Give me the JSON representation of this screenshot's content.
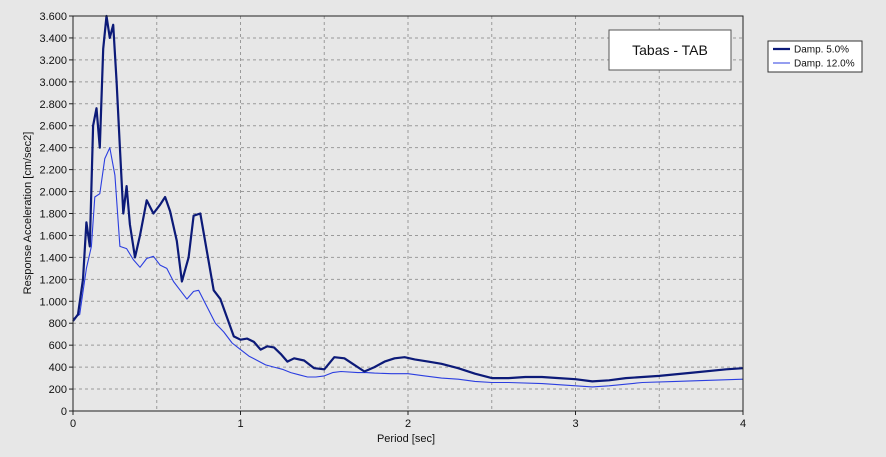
{
  "chart_data": {
    "type": "line",
    "title": "Tabas - TAB",
    "xlabel": "Period [sec]",
    "ylabel": "Response Acceleration [cm/sec2]",
    "xlim": [
      0,
      4
    ],
    "ylim": [
      0,
      3600
    ],
    "x_ticks": [
      0,
      1,
      2,
      3,
      4
    ],
    "x_tick_labels": [
      "0",
      "1",
      "2",
      "3",
      "4"
    ],
    "y_ticks": [
      0,
      200,
      400,
      600,
      800,
      1000,
      1200,
      1400,
      1600,
      1800,
      2000,
      2200,
      2400,
      2600,
      2800,
      3000,
      3200,
      3400,
      3600
    ],
    "y_tick_labels": [
      "0",
      "200",
      "400",
      "600",
      "800",
      "1.000",
      "1.200",
      "1.400",
      "1.600",
      "1.800",
      "2.000",
      "2.200",
      "2.400",
      "2.600",
      "2.800",
      "3.000",
      "3.200",
      "3.400",
      "3.600"
    ],
    "grid": true,
    "legend_position": "top-right, outside plot",
    "colors": {
      "plot_bg": "#e7e7e7",
      "grid": "#9a9a9a",
      "title_box": "#ffffff"
    },
    "series": [
      {
        "name": "Damp. 5.0%",
        "color": "#0c1a78",
        "width": 2.2,
        "points": [
          [
            0,
            820
          ],
          [
            0.03,
            880
          ],
          [
            0.06,
            1200
          ],
          [
            0.08,
            1720
          ],
          [
            0.1,
            1500
          ],
          [
            0.12,
            2600
          ],
          [
            0.14,
            2760
          ],
          [
            0.16,
            2400
          ],
          [
            0.18,
            3300
          ],
          [
            0.2,
            3650
          ],
          [
            0.22,
            3400
          ],
          [
            0.24,
            3520
          ],
          [
            0.26,
            3000
          ],
          [
            0.28,
            2400
          ],
          [
            0.3,
            1800
          ],
          [
            0.32,
            2050
          ],
          [
            0.34,
            1700
          ],
          [
            0.37,
            1400
          ],
          [
            0.4,
            1600
          ],
          [
            0.44,
            1920
          ],
          [
            0.48,
            1800
          ],
          [
            0.52,
            1880
          ],
          [
            0.55,
            1950
          ],
          [
            0.58,
            1820
          ],
          [
            0.62,
            1550
          ],
          [
            0.65,
            1180
          ],
          [
            0.69,
            1400
          ],
          [
            0.72,
            1780
          ],
          [
            0.76,
            1800
          ],
          [
            0.8,
            1450
          ],
          [
            0.84,
            1100
          ],
          [
            0.88,
            1020
          ],
          [
            0.92,
            850
          ],
          [
            0.96,
            680
          ],
          [
            1.0,
            650
          ],
          [
            1.04,
            660
          ],
          [
            1.08,
            630
          ],
          [
            1.12,
            560
          ],
          [
            1.16,
            590
          ],
          [
            1.2,
            580
          ],
          [
            1.24,
            520
          ],
          [
            1.28,
            450
          ],
          [
            1.32,
            480
          ],
          [
            1.38,
            460
          ],
          [
            1.44,
            390
          ],
          [
            1.5,
            380
          ],
          [
            1.56,
            490
          ],
          [
            1.62,
            480
          ],
          [
            1.68,
            420
          ],
          [
            1.74,
            360
          ],
          [
            1.8,
            400
          ],
          [
            1.86,
            450
          ],
          [
            1.92,
            480
          ],
          [
            1.98,
            490
          ],
          [
            2.04,
            470
          ],
          [
            2.12,
            450
          ],
          [
            2.2,
            430
          ],
          [
            2.3,
            390
          ],
          [
            2.4,
            340
          ],
          [
            2.5,
            300
          ],
          [
            2.6,
            300
          ],
          [
            2.7,
            310
          ],
          [
            2.8,
            310
          ],
          [
            2.9,
            300
          ],
          [
            3.0,
            290
          ],
          [
            3.1,
            270
          ],
          [
            3.2,
            280
          ],
          [
            3.3,
            300
          ],
          [
            3.5,
            320
          ],
          [
            3.7,
            350
          ],
          [
            3.9,
            380
          ],
          [
            4.0,
            390
          ]
        ]
      },
      {
        "name": "Damp. 12.0%",
        "color": "#2b3ee0",
        "width": 1.1,
        "points": [
          [
            0,
            840
          ],
          [
            0.04,
            880
          ],
          [
            0.08,
            1300
          ],
          [
            0.11,
            1500
          ],
          [
            0.13,
            1950
          ],
          [
            0.16,
            1980
          ],
          [
            0.19,
            2300
          ],
          [
            0.22,
            2400
          ],
          [
            0.25,
            2150
          ],
          [
            0.28,
            1500
          ],
          [
            0.32,
            1480
          ],
          [
            0.36,
            1380
          ],
          [
            0.4,
            1310
          ],
          [
            0.44,
            1390
          ],
          [
            0.48,
            1410
          ],
          [
            0.52,
            1330
          ],
          [
            0.56,
            1300
          ],
          [
            0.6,
            1180
          ],
          [
            0.64,
            1100
          ],
          [
            0.68,
            1020
          ],
          [
            0.72,
            1090
          ],
          [
            0.75,
            1100
          ],
          [
            0.8,
            950
          ],
          [
            0.85,
            800
          ],
          [
            0.9,
            720
          ],
          [
            0.95,
            620
          ],
          [
            1.0,
            560
          ],
          [
            1.05,
            500
          ],
          [
            1.1,
            460
          ],
          [
            1.15,
            420
          ],
          [
            1.2,
            400
          ],
          [
            1.25,
            380
          ],
          [
            1.3,
            350
          ],
          [
            1.35,
            330
          ],
          [
            1.4,
            310
          ],
          [
            1.45,
            310
          ],
          [
            1.5,
            320
          ],
          [
            1.55,
            350
          ],
          [
            1.6,
            360
          ],
          [
            1.7,
            350
          ],
          [
            1.75,
            350
          ],
          [
            1.8,
            345
          ],
          [
            1.9,
            340
          ],
          [
            2.0,
            340
          ],
          [
            2.1,
            320
          ],
          [
            2.2,
            300
          ],
          [
            2.3,
            290
          ],
          [
            2.4,
            270
          ],
          [
            2.5,
            260
          ],
          [
            2.6,
            260
          ],
          [
            2.8,
            250
          ],
          [
            3.0,
            230
          ],
          [
            3.1,
            220
          ],
          [
            3.2,
            230
          ],
          [
            3.4,
            260
          ],
          [
            3.6,
            270
          ],
          [
            3.8,
            280
          ],
          [
            4.0,
            290
          ]
        ]
      }
    ]
  }
}
